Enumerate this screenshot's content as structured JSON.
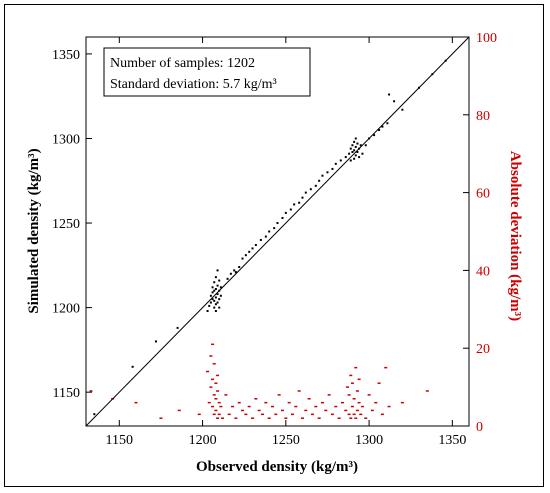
{
  "chart_data": {
    "type": "scatter",
    "xlabel": "Observed density (kg/m³)",
    "ylabel": "Simulated density (kg/m³)",
    "y2label": "Absolute deviation (kg/m³)",
    "xlim": [
      1130,
      1360
    ],
    "ylim": [
      1130,
      1360
    ],
    "y2lim": [
      0,
      100
    ],
    "xticks": [
      1150,
      1200,
      1250,
      1300,
      1350
    ],
    "yticks": [
      1150,
      1200,
      1250,
      1300,
      1350
    ],
    "y2ticks": [
      0,
      20,
      40,
      60,
      80,
      100
    ],
    "info": {
      "line1": "Number of samples: 1202",
      "line2": "Standard deviation: 5.7 kg/m³"
    },
    "colors": {
      "simulated": "#000000",
      "deviation": "#cc0000",
      "one_to_one_line": "#000000"
    },
    "series": [
      {
        "values": [
          [
            1135,
            1137
          ],
          [
            1158,
            1165
          ],
          [
            1172,
            1180
          ],
          [
            1185,
            1188
          ],
          [
            1203,
            1198
          ],
          [
            1204,
            1201
          ],
          [
            1205,
            1203
          ],
          [
            1205,
            1207
          ],
          [
            1206,
            1205
          ],
          [
            1206,
            1209
          ],
          [
            1206,
            1212
          ],
          [
            1207,
            1200
          ],
          [
            1207,
            1204
          ],
          [
            1207,
            1210
          ],
          [
            1207,
            1215
          ],
          [
            1208,
            1198
          ],
          [
            1208,
            1202
          ],
          [
            1208,
            1206
          ],
          [
            1208,
            1211
          ],
          [
            1208,
            1218
          ],
          [
            1209,
            1203
          ],
          [
            1209,
            1208
          ],
          [
            1209,
            1213
          ],
          [
            1209,
            1222
          ],
          [
            1210,
            1200
          ],
          [
            1210,
            1205
          ],
          [
            1210,
            1210
          ],
          [
            1210,
            1216
          ],
          [
            1211,
            1207
          ],
          [
            1211,
            1212
          ],
          [
            1215,
            1217
          ],
          [
            1217,
            1220
          ],
          [
            1219,
            1222
          ],
          [
            1220,
            1221
          ],
          [
            1222,
            1224
          ],
          [
            1224,
            1229
          ],
          [
            1226,
            1231
          ],
          [
            1228,
            1233
          ],
          [
            1230,
            1235
          ],
          [
            1232,
            1237
          ],
          [
            1235,
            1240
          ],
          [
            1238,
            1242
          ],
          [
            1240,
            1245
          ],
          [
            1243,
            1247
          ],
          [
            1245,
            1250
          ],
          [
            1248,
            1253
          ],
          [
            1250,
            1256
          ],
          [
            1253,
            1258
          ],
          [
            1255,
            1261
          ],
          [
            1258,
            1262
          ],
          [
            1260,
            1265
          ],
          [
            1262,
            1268
          ],
          [
            1265,
            1270
          ],
          [
            1268,
            1272
          ],
          [
            1270,
            1275
          ],
          [
            1272,
            1278
          ],
          [
            1275,
            1280
          ],
          [
            1278,
            1282
          ],
          [
            1280,
            1285
          ],
          [
            1283,
            1287
          ],
          [
            1286,
            1289
          ],
          [
            1288,
            1291
          ],
          [
            1289,
            1287
          ],
          [
            1289,
            1294
          ],
          [
            1290,
            1292
          ],
          [
            1290,
            1296
          ],
          [
            1291,
            1288
          ],
          [
            1291,
            1293
          ],
          [
            1291,
            1298
          ],
          [
            1292,
            1290
          ],
          [
            1292,
            1295
          ],
          [
            1292,
            1300
          ],
          [
            1293,
            1292
          ],
          [
            1293,
            1297
          ],
          [
            1294,
            1289
          ],
          [
            1294,
            1294
          ],
          [
            1295,
            1296
          ],
          [
            1296,
            1291
          ],
          [
            1298,
            1296
          ],
          [
            1300,
            1300
          ],
          [
            1303,
            1302
          ],
          [
            1306,
            1305
          ],
          [
            1308,
            1307
          ],
          [
            1311,
            1309
          ],
          [
            1312,
            1326
          ],
          [
            1315,
            1322
          ],
          [
            1320,
            1317
          ],
          [
            1330,
            1330
          ],
          [
            1338,
            1338
          ],
          [
            1346,
            1346
          ]
        ]
      },
      {
        "values": [
          [
            1133,
            9
          ],
          [
            1146,
            7
          ],
          [
            1160,
            6
          ],
          [
            1175,
            2
          ],
          [
            1186,
            4
          ],
          [
            1198,
            3
          ],
          [
            1203,
            14
          ],
          [
            1204,
            6
          ],
          [
            1205,
            10
          ],
          [
            1205,
            18
          ],
          [
            1206,
            5
          ],
          [
            1206,
            12
          ],
          [
            1206,
            21
          ],
          [
            1207,
            3
          ],
          [
            1207,
            8
          ],
          [
            1207,
            16
          ],
          [
            1208,
            4
          ],
          [
            1208,
            11
          ],
          [
            1208,
            7
          ],
          [
            1209,
            2
          ],
          [
            1209,
            9
          ],
          [
            1209,
            13
          ],
          [
            1210,
            6
          ],
          [
            1210,
            3
          ],
          [
            1211,
            5
          ],
          [
            1212,
            2
          ],
          [
            1214,
            8
          ],
          [
            1216,
            3
          ],
          [
            1218,
            5
          ],
          [
            1220,
            2
          ],
          [
            1222,
            6
          ],
          [
            1224,
            4
          ],
          [
            1226,
            3
          ],
          [
            1228,
            5
          ],
          [
            1230,
            2
          ],
          [
            1232,
            7
          ],
          [
            1234,
            4
          ],
          [
            1236,
            3
          ],
          [
            1238,
            6
          ],
          [
            1240,
            2
          ],
          [
            1242,
            5
          ],
          [
            1244,
            3
          ],
          [
            1246,
            8
          ],
          [
            1248,
            4
          ],
          [
            1250,
            2
          ],
          [
            1252,
            6
          ],
          [
            1254,
            3
          ],
          [
            1256,
            5
          ],
          [
            1258,
            9
          ],
          [
            1260,
            2
          ],
          [
            1262,
            4
          ],
          [
            1264,
            7
          ],
          [
            1266,
            3
          ],
          [
            1268,
            5
          ],
          [
            1270,
            2
          ],
          [
            1272,
            6
          ],
          [
            1274,
            4
          ],
          [
            1276,
            8
          ],
          [
            1278,
            3
          ],
          [
            1280,
            5
          ],
          [
            1282,
            2
          ],
          [
            1284,
            6
          ],
          [
            1286,
            4
          ],
          [
            1287,
            10
          ],
          [
            1288,
            3
          ],
          [
            1288,
            8
          ],
          [
            1289,
            2
          ],
          [
            1289,
            13
          ],
          [
            1290,
            5
          ],
          [
            1290,
            11
          ],
          [
            1291,
            3
          ],
          [
            1291,
            7
          ],
          [
            1292,
            2
          ],
          [
            1292,
            15
          ],
          [
            1293,
            4
          ],
          [
            1293,
            9
          ],
          [
            1294,
            6
          ],
          [
            1294,
            12
          ],
          [
            1295,
            3
          ],
          [
            1296,
            5
          ],
          [
            1298,
            2
          ],
          [
            1300,
            8
          ],
          [
            1302,
            4
          ],
          [
            1304,
            6
          ],
          [
            1306,
            11
          ],
          [
            1308,
            3
          ],
          [
            1310,
            15
          ],
          [
            1312,
            5
          ],
          [
            1320,
            6
          ],
          [
            1335,
            9
          ]
        ]
      }
    ]
  }
}
